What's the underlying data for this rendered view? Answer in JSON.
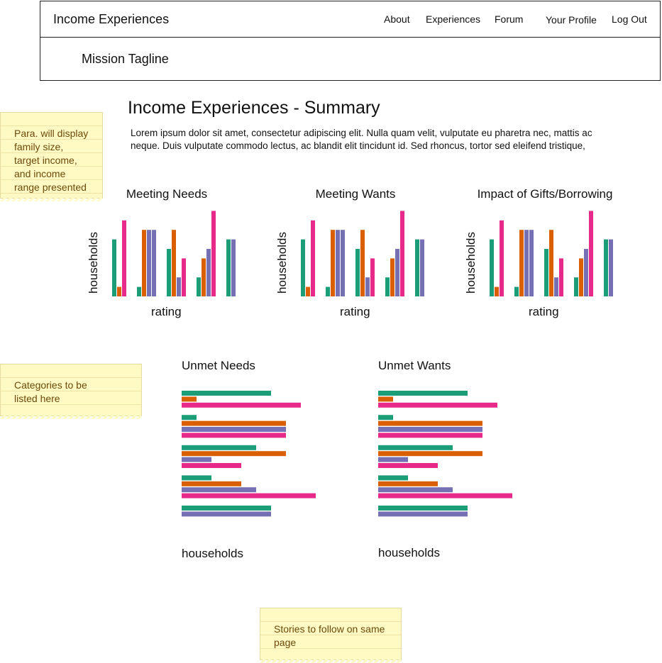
{
  "header": {
    "brand": "Income Experiences",
    "tagline": "Mission Tagline",
    "nav": [
      "About",
      "Experiences",
      "Forum",
      "Your Profile",
      "Log Out"
    ]
  },
  "main": {
    "title": "Income Experiences - Summary",
    "intro_line1": "Lorem ipsum dolor sit amet, consectetur adipiscing elit. Nulla quam velit, vulputate eu pharetra nec, mattis ac",
    "intro_line2": "neque. Duis vulputate commodo lectus, ac blandit elit tincidunt id. Sed rhoncus, tortor sed eleifend tristique,"
  },
  "notes": {
    "para": [
      "Para. will display",
      "family size,",
      "target income,",
      "and income",
      "range presented"
    ],
    "categories": [
      "Categories to be",
      "listed here"
    ],
    "stories": [
      "Stories to follow on same",
      "page"
    ]
  },
  "colors": {
    "teal": "#1b9e77",
    "orange": "#d95f02",
    "purple": "#7570b3",
    "pink": "#e7298a"
  },
  "chart_data": [
    {
      "type": "bar",
      "title": "Meeting Needs",
      "xlabel": "rating",
      "ylabel": "households",
      "groups": [
        [
          {
            "c": "teal",
            "v": 6
          },
          {
            "c": "orange",
            "v": 1
          },
          {
            "c": "pink",
            "v": 8
          }
        ],
        [
          {
            "c": "teal",
            "v": 1
          },
          {
            "c": "orange",
            "v": 7
          },
          {
            "c": "purple",
            "v": 7
          },
          {
            "c": "purple",
            "v": 7
          }
        ],
        [
          {
            "c": "teal",
            "v": 5
          },
          {
            "c": "orange",
            "v": 7
          },
          {
            "c": "purple",
            "v": 2
          },
          {
            "c": "pink",
            "v": 4
          }
        ],
        [
          {
            "c": "teal",
            "v": 2
          },
          {
            "c": "orange",
            "v": 4
          },
          {
            "c": "purple",
            "v": 5
          },
          {
            "c": "pink",
            "v": 9
          }
        ],
        [
          {
            "c": "teal",
            "v": 6
          },
          {
            "c": "purple",
            "v": 6
          }
        ]
      ]
    },
    {
      "type": "bar",
      "title": "Meeting Wants",
      "xlabel": "rating",
      "ylabel": "households",
      "groups": [
        [
          {
            "c": "teal",
            "v": 6
          },
          {
            "c": "orange",
            "v": 1
          },
          {
            "c": "pink",
            "v": 8
          }
        ],
        [
          {
            "c": "teal",
            "v": 1
          },
          {
            "c": "orange",
            "v": 7
          },
          {
            "c": "purple",
            "v": 7
          },
          {
            "c": "purple",
            "v": 7
          }
        ],
        [
          {
            "c": "teal",
            "v": 5
          },
          {
            "c": "orange",
            "v": 7
          },
          {
            "c": "purple",
            "v": 2
          },
          {
            "c": "pink",
            "v": 4
          }
        ],
        [
          {
            "c": "teal",
            "v": 2
          },
          {
            "c": "orange",
            "v": 4
          },
          {
            "c": "purple",
            "v": 5
          },
          {
            "c": "pink",
            "v": 9
          }
        ],
        [
          {
            "c": "teal",
            "v": 6
          },
          {
            "c": "purple",
            "v": 6
          }
        ]
      ]
    },
    {
      "type": "bar",
      "title": "Impact of Gifts/Borrowing",
      "xlabel": "rating",
      "ylabel": "households",
      "groups": [
        [
          {
            "c": "teal",
            "v": 6
          },
          {
            "c": "orange",
            "v": 1
          },
          {
            "c": "pink",
            "v": 8
          }
        ],
        [
          {
            "c": "teal",
            "v": 1
          },
          {
            "c": "orange",
            "v": 7
          },
          {
            "c": "purple",
            "v": 7
          },
          {
            "c": "purple",
            "v": 7
          }
        ],
        [
          {
            "c": "teal",
            "v": 5
          },
          {
            "c": "orange",
            "v": 7
          },
          {
            "c": "purple",
            "v": 2
          },
          {
            "c": "pink",
            "v": 4
          }
        ],
        [
          {
            "c": "teal",
            "v": 2
          },
          {
            "c": "orange",
            "v": 4
          },
          {
            "c": "purple",
            "v": 5
          },
          {
            "c": "pink",
            "v": 9
          }
        ],
        [
          {
            "c": "teal",
            "v": 6
          },
          {
            "c": "purple",
            "v": 6
          }
        ]
      ]
    },
    {
      "type": "bar",
      "orientation": "horizontal",
      "title": "Unmet Needs",
      "xlabel": "households",
      "groups": [
        [
          {
            "c": "teal",
            "v": 6
          },
          {
            "c": "orange",
            "v": 1
          },
          {
            "c": "pink",
            "v": 8
          }
        ],
        [
          {
            "c": "teal",
            "v": 1
          },
          {
            "c": "orange",
            "v": 7
          },
          {
            "c": "purple",
            "v": 7
          },
          {
            "c": "pink",
            "v": 7
          }
        ],
        [
          {
            "c": "teal",
            "v": 5
          },
          {
            "c": "orange",
            "v": 7
          },
          {
            "c": "purple",
            "v": 2
          },
          {
            "c": "pink",
            "v": 4
          }
        ],
        [
          {
            "c": "teal",
            "v": 2
          },
          {
            "c": "orange",
            "v": 4
          },
          {
            "c": "purple",
            "v": 5
          },
          {
            "c": "pink",
            "v": 9
          }
        ],
        [
          {
            "c": "teal",
            "v": 6
          },
          {
            "c": "purple",
            "v": 6
          }
        ]
      ]
    },
    {
      "type": "bar",
      "orientation": "horizontal",
      "title": "Unmet Wants",
      "xlabel": "households",
      "groups": [
        [
          {
            "c": "teal",
            "v": 6
          },
          {
            "c": "orange",
            "v": 1
          },
          {
            "c": "pink",
            "v": 8
          }
        ],
        [
          {
            "c": "teal",
            "v": 1
          },
          {
            "c": "orange",
            "v": 7
          },
          {
            "c": "purple",
            "v": 7
          },
          {
            "c": "pink",
            "v": 7
          }
        ],
        [
          {
            "c": "teal",
            "v": 5
          },
          {
            "c": "orange",
            "v": 7
          },
          {
            "c": "purple",
            "v": 2
          },
          {
            "c": "pink",
            "v": 4
          }
        ],
        [
          {
            "c": "teal",
            "v": 2
          },
          {
            "c": "orange",
            "v": 4
          },
          {
            "c": "purple",
            "v": 5
          },
          {
            "c": "pink",
            "v": 9
          }
        ],
        [
          {
            "c": "teal",
            "v": 6
          },
          {
            "c": "purple",
            "v": 6
          }
        ]
      ]
    }
  ]
}
